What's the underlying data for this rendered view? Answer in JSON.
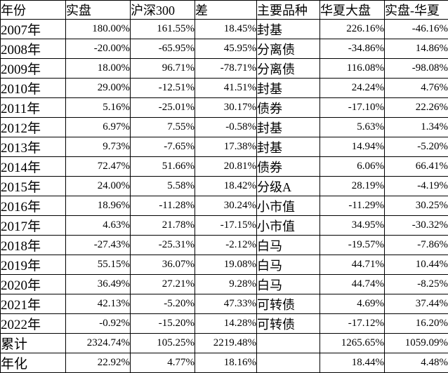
{
  "colors": {
    "background": "#ffffff",
    "border": "#000000",
    "text": "#000000"
  },
  "table": {
    "columns": [
      {
        "label": "年份",
        "align": "left",
        "type": "year"
      },
      {
        "label": "实盘",
        "align": "right",
        "type": "num"
      },
      {
        "label": "沪深300",
        "align": "right",
        "type": "num"
      },
      {
        "label": "差",
        "align": "right",
        "type": "num"
      },
      {
        "label": "主要品种",
        "align": "left",
        "type": "text"
      },
      {
        "label": "华夏大盘",
        "align": "right",
        "type": "num"
      },
      {
        "label": "实盘-华夏",
        "align": "right",
        "type": "num"
      }
    ],
    "rows": [
      [
        "2007年",
        "180.00%",
        "161.55%",
        "18.45%",
        "封基",
        "226.16%",
        "-46.16%"
      ],
      [
        "2008年",
        "-20.00%",
        "-65.95%",
        "45.95%",
        "分离债",
        "-34.86%",
        "14.86%"
      ],
      [
        "2009年",
        "18.00%",
        "96.71%",
        "-78.71%",
        "分离债",
        "116.08%",
        "-98.08%"
      ],
      [
        "2010年",
        "29.00%",
        "-12.51%",
        "41.51%",
        "封基",
        "24.24%",
        "4.76%"
      ],
      [
        "2011年",
        "5.16%",
        "-25.01%",
        "30.17%",
        "债券",
        "-17.10%",
        "22.26%"
      ],
      [
        "2012年",
        "6.97%",
        "7.55%",
        "-0.58%",
        "封基",
        "5.63%",
        "1.34%"
      ],
      [
        "2013年",
        "9.73%",
        "-7.65%",
        "17.38%",
        "封基",
        "14.94%",
        "-5.20%"
      ],
      [
        "2014年",
        "72.47%",
        "51.66%",
        "20.81%",
        "债券",
        "6.06%",
        "66.41%"
      ],
      [
        "2015年",
        "24.00%",
        "5.58%",
        "18.42%",
        "分级A",
        "28.19%",
        "-4.19%"
      ],
      [
        "2016年",
        "18.96%",
        "-11.28%",
        "30.24%",
        "小市值",
        "-11.29%",
        "30.25%"
      ],
      [
        "2017年",
        "4.63%",
        "21.78%",
        "-17.15%",
        "小市值",
        "34.95%",
        "-30.32%"
      ],
      [
        "2018年",
        "-27.43%",
        "-25.31%",
        "-2.12%",
        "白马",
        "-19.57%",
        "-7.86%"
      ],
      [
        "2019年",
        "55.15%",
        "36.07%",
        "19.08%",
        "白马",
        "44.71%",
        "10.44%"
      ],
      [
        "2020年",
        "36.49%",
        "27.21%",
        "9.28%",
        "白马",
        "44.74%",
        "-8.25%"
      ],
      [
        "2021年",
        "42.13%",
        "-5.20%",
        "47.33%",
        "可转债",
        "4.69%",
        "37.44%"
      ],
      [
        "2022年",
        "-0.92%",
        "-15.20%",
        "14.28%",
        "可转债",
        "-17.12%",
        "16.20%"
      ],
      [
        "累计",
        "2324.74%",
        "105.25%",
        "2219.48%",
        "",
        "1265.65%",
        "1059.09%"
      ],
      [
        "年化",
        "22.92%",
        "4.77%",
        "18.16%",
        "",
        "18.44%",
        "4.48%"
      ]
    ]
  }
}
